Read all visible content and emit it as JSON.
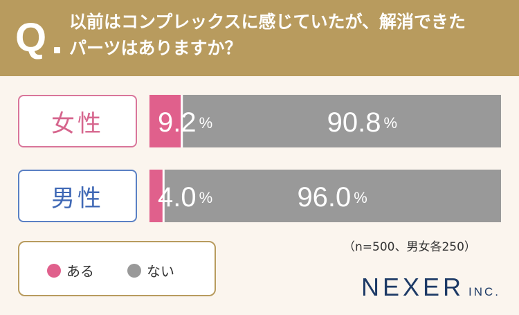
{
  "header": {
    "q_mark": "Q",
    "question_line1": "以前はコンプレックスに感じていたが、解消できた",
    "question_line2": "パーツはありますか？"
  },
  "rows": [
    {
      "label": "女性",
      "label_color": "#d6658d"
    },
    {
      "label": "男性",
      "label_color": "#3f68b5"
    }
  ],
  "note": "（n=500、男女各250）",
  "legend": {
    "items": [
      {
        "label": "ある",
        "color": "#e0608c"
      },
      {
        "label": "ない",
        "color": "#999999"
      }
    ]
  },
  "logo": {
    "main": "NEXER",
    "sub": "INC."
  },
  "chart_data": {
    "type": "bar",
    "stacked": true,
    "orientation": "horizontal",
    "categories": [
      "女性",
      "男性"
    ],
    "series": [
      {
        "name": "ある",
        "values": [
          9.2,
          4.0
        ],
        "color": "#e0608c"
      },
      {
        "name": "ない",
        "values": [
          90.8,
          96.0
        ],
        "color": "#999999"
      }
    ],
    "value_suffix": "%",
    "xlim": [
      0,
      100
    ],
    "legend_position": "bottom-left"
  }
}
